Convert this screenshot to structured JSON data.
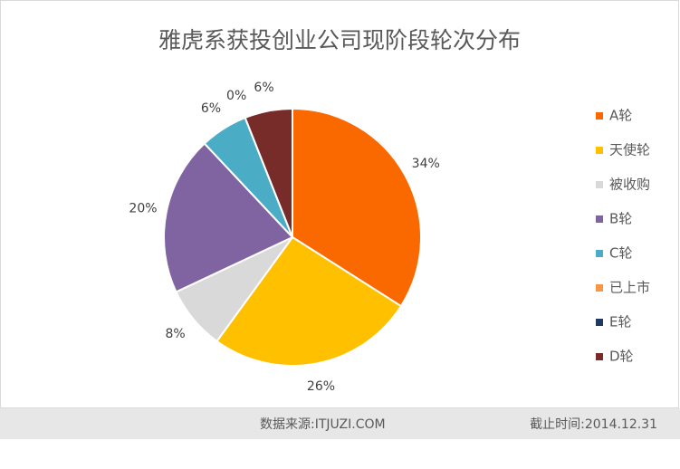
{
  "chart_data": {
    "type": "pie",
    "title": "雅虎系获投创业公司现阶段轮次分布",
    "categories": [
      "A轮",
      "天使轮",
      "被收购",
      "B轮",
      "C轮",
      "已上市",
      "E轮",
      "D轮"
    ],
    "values": [
      34,
      26,
      8,
      20,
      6,
      0,
      0,
      6
    ],
    "value_labels": [
      "34%",
      "26%",
      "8%",
      "20%",
      "6%",
      "0%",
      null,
      "6%"
    ],
    "colors": [
      "#fa6800",
      "#ffc000",
      "#d9d9d9",
      "#8064a2",
      "#4bacc6",
      "#f79646",
      "#1f3864",
      "#772c2a"
    ],
    "legend": "right"
  },
  "footer": {
    "source": "数据来源:ITJUZI.COM",
    "date": "截止时间:2014.12.31"
  }
}
